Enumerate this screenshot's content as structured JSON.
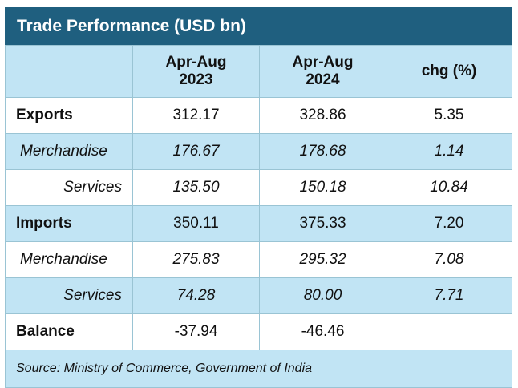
{
  "title": "Trade Performance (USD bn)",
  "columns": [
    "",
    "Apr-Aug 2023",
    "Apr-Aug 2024",
    "chg (%)"
  ],
  "rows": [
    {
      "label": "Exports",
      "c1": "312.17",
      "c2": "328.86",
      "c3": "5.35"
    },
    {
      "label": "Merchandise",
      "c1": "176.67",
      "c2": "178.68",
      "c3": "1.14"
    },
    {
      "label": "Services",
      "c1": "135.50",
      "c2": "150.18",
      "c3": "10.84"
    },
    {
      "label": "Imports",
      "c1": "350.11",
      "c2": "375.33",
      "c3": "7.20"
    },
    {
      "label": "Merchandise",
      "c1": "275.83",
      "c2": "295.32",
      "c3": "7.08"
    },
    {
      "label": "Services",
      "c1": "74.28",
      "c2": "80.00",
      "c3": "7.71"
    },
    {
      "label": "Balance",
      "c1": "-37.94",
      "c2": "-46.46",
      "c3": ""
    }
  ],
  "source": "Source: Ministry of Commerce, Government of India",
  "colors": {
    "title_bg": "#1f5f7f",
    "band": "#c1e4f4",
    "border": "#9ac4d4"
  },
  "chart_data": {
    "type": "table",
    "title": "Trade Performance (USD bn)",
    "columns": [
      "Apr-Aug 2023",
      "Apr-Aug 2024",
      "chg (%)"
    ],
    "rows": [
      {
        "label": "Exports",
        "values": [
          312.17,
          328.86,
          5.35
        ]
      },
      {
        "label": "Merchandise",
        "values": [
          176.67,
          178.68,
          1.14
        ]
      },
      {
        "label": "Services",
        "values": [
          135.5,
          150.18,
          10.84
        ]
      },
      {
        "label": "Imports",
        "values": [
          350.11,
          375.33,
          7.2
        ]
      },
      {
        "label": "Merchandise",
        "values": [
          275.83,
          295.32,
          7.08
        ]
      },
      {
        "label": "Services",
        "values": [
          74.28,
          80.0,
          7.71
        ]
      },
      {
        "label": "Balance",
        "values": [
          -37.94,
          -46.46,
          null
        ]
      }
    ]
  }
}
